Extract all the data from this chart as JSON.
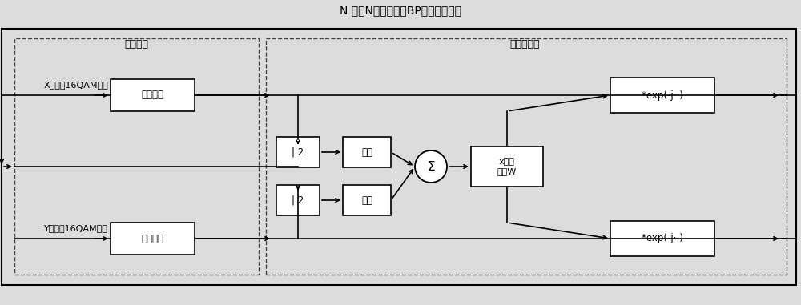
{
  "title": "N 次（N远小于传统BP的循环要求）",
  "title_fontsize": 10,
  "bg_color": "#e8e8e8",
  "label_cd_header": "色散补偿",
  "label_nl_header": "非线性补偿",
  "label_x_signal": "X偏振态16QAM信号",
  "label_y_signal": "Y偏振态16QAM信号",
  "label_cd_box": "色散补偿",
  "label_abs2": "| 2",
  "label_jaquan": "加权",
  "label_sigma": "Σ",
  "label_adjust": "x调整\n因子W",
  "label_exp_top": "*exp(-j· )",
  "label_exp_bot": "*exp(-j· )"
}
